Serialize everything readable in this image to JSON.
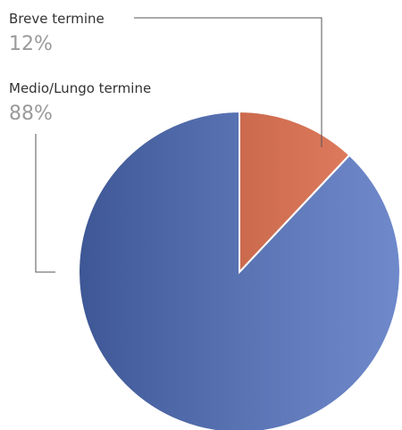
{
  "chart_data": {
    "type": "pie",
    "categories": [
      "Breve termine",
      "Medio/Lungo termine"
    ],
    "values": [
      12,
      88
    ],
    "value_labels": [
      "12%",
      "88%"
    ],
    "colors": [
      "#de6440",
      "#4f6fbf"
    ]
  }
}
